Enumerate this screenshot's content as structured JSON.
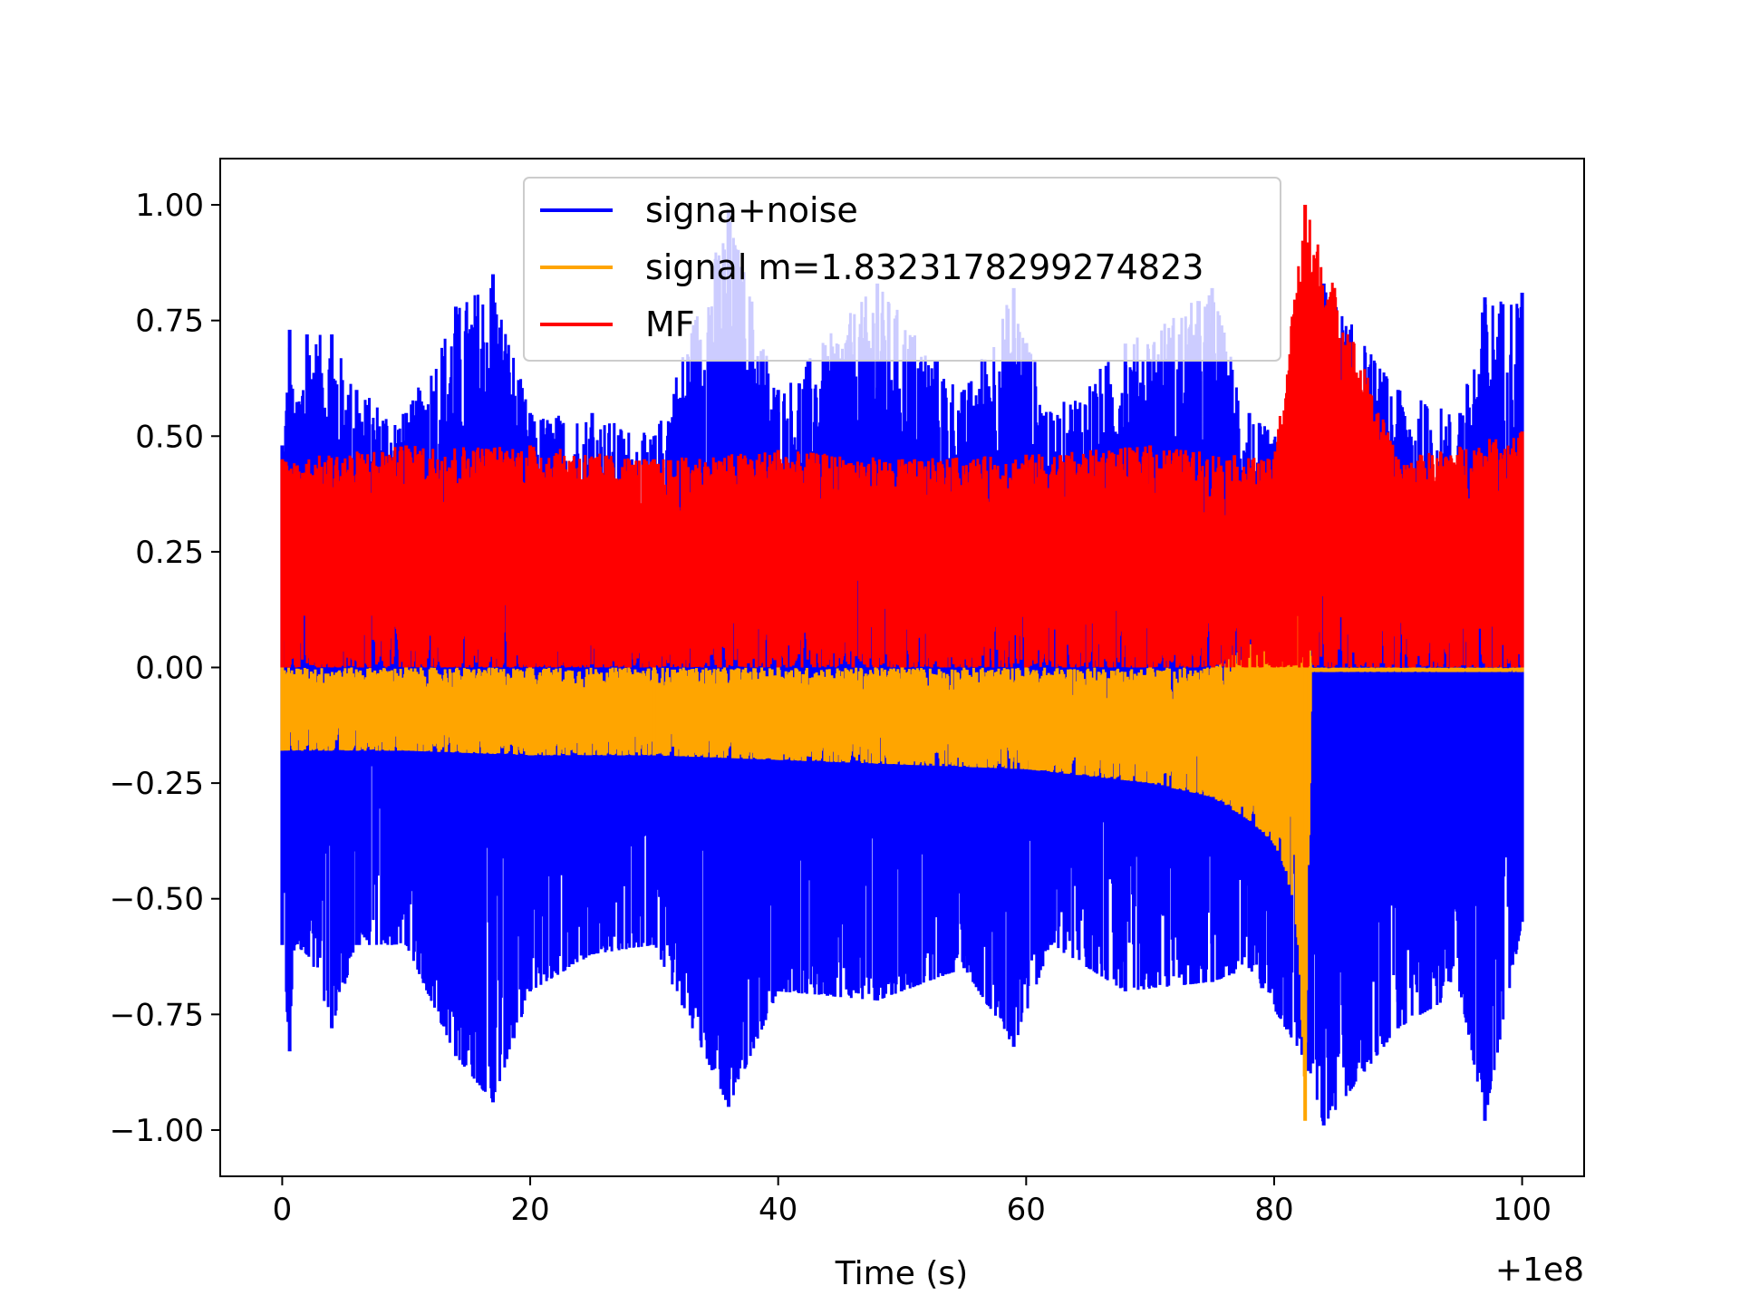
{
  "chart_data": {
    "type": "line",
    "title": "",
    "xlabel": "Time (s)",
    "ylabel": "",
    "x_offset_label": "+1e8",
    "xlim": [
      -5,
      105
    ],
    "ylim": [
      -1.1,
      1.1
    ],
    "xticks": [
      0,
      20,
      40,
      60,
      80,
      100
    ],
    "xtick_labels": [
      "0",
      "20",
      "40",
      "60",
      "80",
      "100"
    ],
    "yticks": [
      1.0,
      0.75,
      0.5,
      0.25,
      0.0,
      -0.25,
      -0.5,
      -0.75,
      -1.0
    ],
    "ytick_labels": [
      "1.00",
      "0.75",
      "0.50",
      "0.25",
      "0.00",
      "−0.25",
      "−0.50",
      "−0.75",
      "−1.00"
    ],
    "grid": false,
    "legend_position": "top-center",
    "series": [
      {
        "name": "signa+noise",
        "color": "#0000ff",
        "x": [
          0,
          0.6,
          1,
          2,
          4,
          6,
          10,
          14,
          17,
          20,
          25,
          30,
          36,
          40,
          48,
          55,
          59,
          62,
          68,
          75,
          78,
          82.5,
          84,
          90,
          95,
          97,
          100
        ],
        "y_max": [
          0.48,
          0.73,
          0.55,
          0.72,
          0.72,
          0.6,
          0.55,
          0.78,
          0.85,
          0.55,
          0.55,
          0.5,
          0.99,
          0.6,
          0.83,
          0.6,
          0.82,
          0.55,
          0.7,
          0.82,
          0.55,
          0.45,
          0.83,
          0.6,
          0.55,
          0.8,
          0.81
        ],
        "y_min": [
          -0.6,
          -0.83,
          -0.6,
          -0.62,
          -0.78,
          -0.6,
          -0.6,
          -0.84,
          -0.94,
          -0.7,
          -0.62,
          -0.6,
          -0.95,
          -0.7,
          -0.72,
          -0.65,
          -0.82,
          -0.6,
          -0.7,
          -0.68,
          -0.65,
          -0.85,
          -0.99,
          -0.78,
          -0.7,
          -0.98,
          -0.55
        ]
      },
      {
        "name": "signal m=1.8323178299274823",
        "color": "#ffa500",
        "x": [
          0,
          10,
          20,
          30,
          40,
          50,
          60,
          70,
          75,
          78,
          80,
          81,
          82,
          82.5,
          83,
          100
        ],
        "y_max": [
          0.0,
          0.0,
          0.0,
          0.0,
          0.0,
          0.0,
          0.0,
          0.0,
          0.0,
          0.05,
          0.12,
          0.2,
          0.5,
          0.75,
          0.0,
          0.0
        ],
        "y_min": [
          -0.18,
          -0.18,
          -0.19,
          -0.19,
          -0.2,
          -0.21,
          -0.22,
          -0.25,
          -0.28,
          -0.33,
          -0.38,
          -0.44,
          -0.6,
          -0.98,
          -0.01,
          -0.01
        ]
      },
      {
        "name": "MF",
        "color": "#ff0000",
        "x": [
          0,
          10,
          20,
          30,
          40,
          50,
          60,
          70,
          80,
          82.5,
          90,
          100
        ],
        "y_max": [
          0.45,
          0.48,
          0.48,
          0.45,
          0.47,
          0.45,
          0.46,
          0.48,
          0.45,
          1.0,
          0.45,
          0.51
        ],
        "y_min": [
          0.0,
          0.0,
          0.0,
          0.0,
          0.0,
          0.0,
          0.0,
          0.0,
          0.0,
          0.0,
          0.0,
          0.0
        ]
      }
    ]
  }
}
